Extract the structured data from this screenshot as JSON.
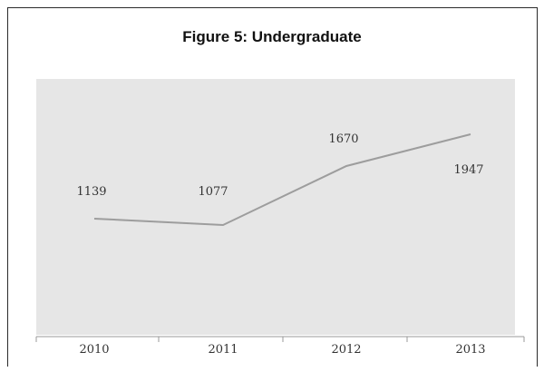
{
  "chart_data": {
    "type": "line",
    "title": "Figure 5: Undergraduate",
    "xlabel": "",
    "ylabel": "",
    "categories": [
      "2010",
      "2011",
      "2012",
      "2013"
    ],
    "series": [
      {
        "values": [
          1139,
          1077,
          1670,
          1947
        ],
        "data_labels": [
          "1139",
          "1077",
          "1670",
          "1947"
        ]
      }
    ],
    "grid": false,
    "legend": "none",
    "colors": {
      "plot_background": "#e6e6e6",
      "line": "#9d9d9d",
      "frame": "#2b2b2b"
    }
  }
}
